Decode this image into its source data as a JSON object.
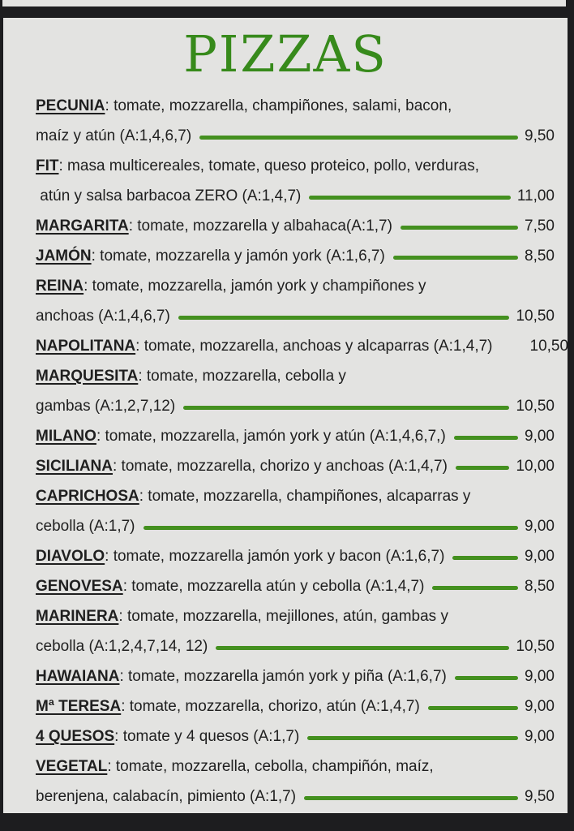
{
  "menu": {
    "title": "PIZZAS",
    "colors": {
      "background": "#1d1d1f",
      "card": "#e3e3e1",
      "text": "#1f1f1f",
      "title_green": "#378a1b",
      "line_green": "#44901f"
    },
    "items": [
      {
        "name": "PECUNIA",
        "desc": ": tomate, mozzarella, champiñones, salami, bacon,",
        "desc2": "maíz y atún (A:1,4,6,7)",
        "price": "9,50",
        "leader": true
      },
      {
        "name": "FIT",
        "desc": ": masa multicereales, tomate, queso proteico, pollo, verduras,",
        "desc2": " atún y salsa barbacoa ZERO (A:1,4,7)",
        "price": "11,00",
        "leader": true
      },
      {
        "name": "MARGARITA",
        "desc": ": tomate, mozzarella y albahaca(A:1,7)",
        "price": "7,50",
        "leader": true
      },
      {
        "name": "JAMÓN",
        "desc": ": tomate, mozzarella y jamón york (A:1,6,7)",
        "price": "8,50",
        "leader": true
      },
      {
        "name": "REINA",
        "desc": ": tomate, mozzarella, jamón york y champiñones y",
        "desc2": "anchoas (A:1,4,6,7)",
        "price": "10,50",
        "leader": true
      },
      {
        "name": "NAPOLITANA",
        "desc": ": tomate, mozzarella, anchoas y alcaparras (A:1,4,7)",
        "price": "10,50",
        "leader": false
      },
      {
        "name": "MARQUESITA",
        "desc": ": tomate, mozzarella, cebolla y",
        "desc2": "gambas (A:1,2,7,12)",
        "price": "10,50",
        "leader": true
      },
      {
        "name": "MILANO",
        "desc": ": tomate, mozzarella, jamón york y atún (A:1,4,6,7,)",
        "price": "9,00",
        "leader": true
      },
      {
        "name": "SICILIANA",
        "desc": ": tomate, mozzarella, chorizo y anchoas (A:1,4,7)",
        "price": "10,00",
        "leader": true
      },
      {
        "name": "CAPRICHOSA",
        "desc": ": tomate, mozzarella, champiñones, alcaparras y",
        "desc2": "cebolla (A:1,7)",
        "price": "9,00",
        "leader": true
      },
      {
        "name": "DIAVOLO",
        "desc": ": tomate, mozzarella jamón york y bacon (A:1,6,7)",
        "price": "9,00",
        "leader": true
      },
      {
        "name": "GENOVESA",
        "desc": ": tomate, mozzarella atún y cebolla (A:1,4,7)",
        "price": "8,50",
        "leader": true
      },
      {
        "name": "MARINERA",
        "desc": ": tomate, mozzarella, mejillones, atún, gambas y",
        "desc2": "cebolla (A:1,2,4,7,14, 12)",
        "price": "10,50",
        "leader": true
      },
      {
        "name": "HAWAIANA",
        "desc": ": tomate, mozzarella jamón york y piña (A:1,6,7)",
        "price": "9,00",
        "leader": true
      },
      {
        "name": "Mª TERESA",
        "desc": ": tomate, mozzarella, chorizo, atún (A:1,4,7)",
        "price": "9,00",
        "leader": true
      },
      {
        "name": "4 QUESOS",
        "desc": ": tomate y 4 quesos (A:1,7)",
        "price": "9,00",
        "leader": true
      },
      {
        "name": "VEGETAL",
        "desc": ": tomate, mozzarella, cebolla, champiñón, maíz,",
        "desc2": "berenjena, calabacín, pimiento (A:1,7)",
        "price": "9,50",
        "leader": true
      }
    ]
  }
}
